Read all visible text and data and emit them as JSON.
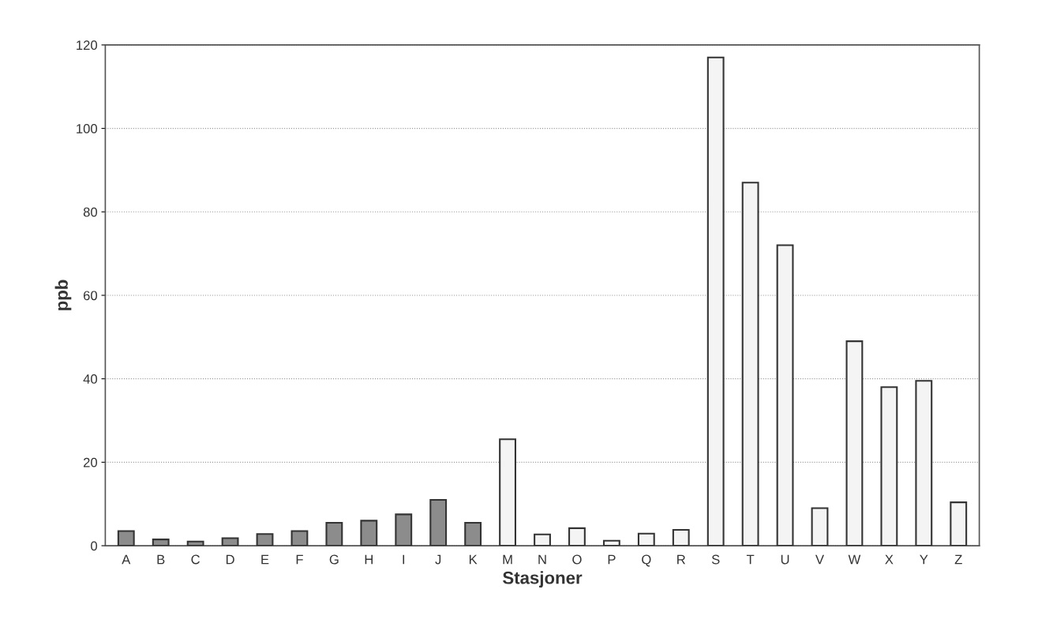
{
  "chart_data": {
    "type": "bar",
    "xlabel": "Stasjoner",
    "ylabel": "ppb",
    "categories": [
      "A",
      "B",
      "C",
      "D",
      "E",
      "F",
      "G",
      "H",
      "I",
      "J",
      "K",
      "M",
      "N",
      "O",
      "P",
      "Q",
      "R",
      "S",
      "T",
      "U",
      "V",
      "W",
      "X",
      "Y",
      "Z"
    ],
    "values": [
      3.5,
      1.5,
      1,
      1.8,
      2.8,
      3.5,
      5.5,
      6,
      7.5,
      11,
      5.5,
      25.5,
      2.7,
      4.2,
      1.2,
      2.9,
      3.8,
      117,
      87,
      72,
      9,
      49,
      38,
      39.5,
      10.4
    ],
    "colors": [
      "#8c8c8c",
      "#8c8c8c",
      "#8c8c8c",
      "#8c8c8c",
      "#8c8c8c",
      "#8c8c8c",
      "#8c8c8c",
      "#8c8c8c",
      "#8c8c8c",
      "#8c8c8c",
      "#8c8c8c",
      "#f4f4f4",
      "#f4f4f4",
      "#f4f4f4",
      "#f4f4f4",
      "#f4f4f4",
      "#f4f4f4",
      "#f4f4f4",
      "#f4f4f4",
      "#f4f4f4",
      "#f4f4f4",
      "#f4f4f4",
      "#f4f4f4",
      "#f4f4f4",
      "#f4f4f4"
    ],
    "ylim": [
      0,
      120
    ],
    "yticks": [
      0,
      20,
      40,
      60,
      80,
      100,
      120
    ],
    "grid": "y"
  }
}
